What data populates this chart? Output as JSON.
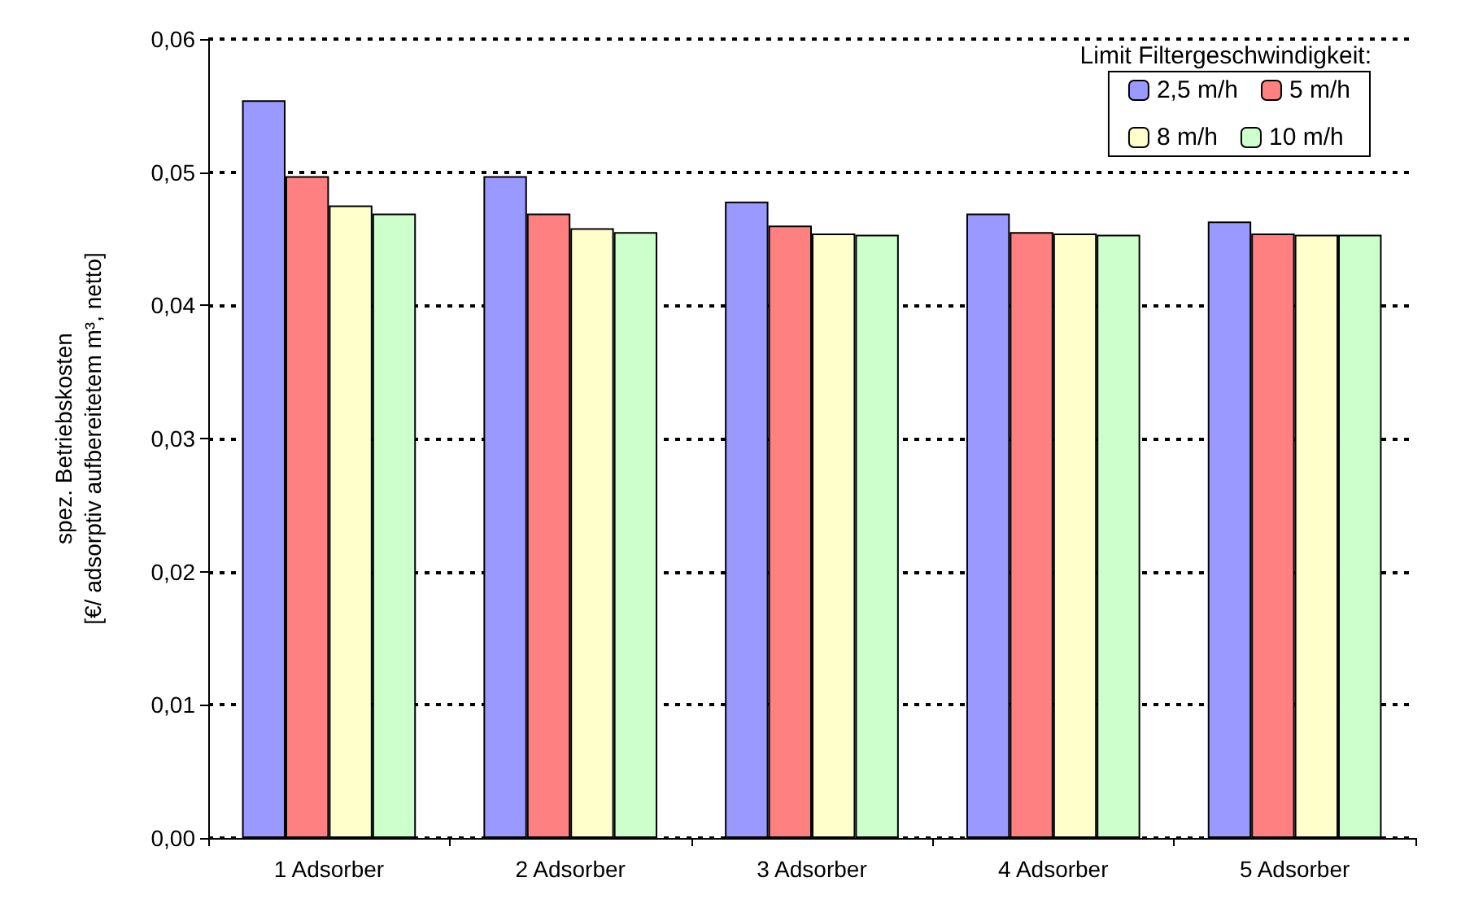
{
  "chart_data": {
    "type": "bar",
    "ylabel": "spez. Betriebskosten\n[€/ adsorptiv aufbereitetem m³, netto]",
    "legend_title": "Limit Filtergeschwindigkeit:",
    "categories": [
      "1 Adsorber",
      "2 Adsorber",
      "3 Adsorber",
      "4 Adsorber",
      "5 Adsorber"
    ],
    "series": [
      {
        "name": "2,5 m/h",
        "color": "#9999ff",
        "values": [
          0.0554,
          0.0497,
          0.0478,
          0.0469,
          0.0463
        ]
      },
      {
        "name": "5 m/h",
        "color": "#ff8080",
        "values": [
          0.0497,
          0.0469,
          0.046,
          0.0455,
          0.0454
        ]
      },
      {
        "name": "8 m/h",
        "color": "#ffffcc",
        "values": [
          0.0475,
          0.0458,
          0.0454,
          0.0454,
          0.0453
        ]
      },
      {
        "name": "10 m/h",
        "color": "#ccffcc",
        "values": [
          0.0469,
          0.0455,
          0.0453,
          0.0453,
          0.0453
        ]
      }
    ],
    "ylim": [
      0,
      0.06
    ],
    "yticks": [
      {
        "value": 0,
        "label": "0,00"
      },
      {
        "value": 0.01,
        "label": "0,01"
      },
      {
        "value": 0.02,
        "label": "0,02"
      },
      {
        "value": 0.03,
        "label": "0,03"
      },
      {
        "value": 0.04,
        "label": "0,04"
      },
      {
        "value": 0.05,
        "label": "0,05"
      },
      {
        "value": 0.06,
        "label": "0,06"
      }
    ],
    "grid": "y",
    "legend": "top right"
  }
}
